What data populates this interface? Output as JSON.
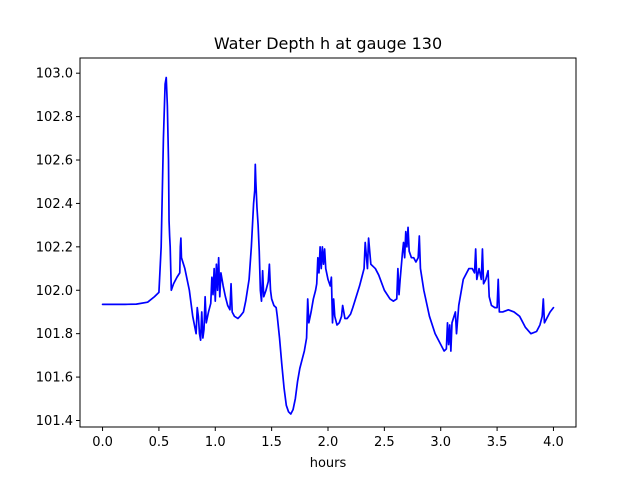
{
  "chart_data": {
    "type": "line",
    "title": "Water Depth h at gauge 130",
    "xlabel": "hours",
    "ylabel": "",
    "xlim": [
      -0.2,
      4.2
    ],
    "ylim": [
      101.37,
      103.07
    ],
    "xticks": [
      0.0,
      0.5,
      1.0,
      1.5,
      2.0,
      2.5,
      3.0,
      3.5,
      4.0
    ],
    "xtick_labels": [
      "0.0",
      "0.5",
      "1.0",
      "1.5",
      "2.0",
      "2.5",
      "3.0",
      "3.5",
      "4.0"
    ],
    "yticks": [
      101.4,
      101.6,
      101.8,
      102.0,
      102.2,
      102.4,
      102.6,
      102.8,
      103.0
    ],
    "ytick_labels": [
      "101.4",
      "101.6",
      "101.8",
      "102.0",
      "102.2",
      "102.4",
      "102.6",
      "102.8",
      "103.0"
    ],
    "grid": false,
    "legend": "none",
    "series": [
      {
        "color": "#0000ff",
        "points": [
          [
            0.0,
            101.935
          ],
          [
            0.2,
            101.935
          ],
          [
            0.3,
            101.936
          ],
          [
            0.4,
            101.945
          ],
          [
            0.46,
            101.97
          ],
          [
            0.5,
            101.99
          ],
          [
            0.52,
            102.2
          ],
          [
            0.54,
            102.7
          ],
          [
            0.555,
            102.95
          ],
          [
            0.565,
            102.98
          ],
          [
            0.575,
            102.85
          ],
          [
            0.585,
            102.6
          ],
          [
            0.59,
            102.32
          ],
          [
            0.595,
            102.25
          ],
          [
            0.6,
            102.2
          ],
          [
            0.61,
            102.0
          ],
          [
            0.63,
            102.03
          ],
          [
            0.66,
            102.06
          ],
          [
            0.685,
            102.08
          ],
          [
            0.69,
            102.2
          ],
          [
            0.695,
            102.24
          ],
          [
            0.7,
            102.15
          ],
          [
            0.73,
            102.1
          ],
          [
            0.77,
            102.0
          ],
          [
            0.8,
            101.88
          ],
          [
            0.83,
            101.8
          ],
          [
            0.84,
            101.92
          ],
          [
            0.85,
            101.88
          ],
          [
            0.86,
            101.8
          ],
          [
            0.87,
            101.77
          ],
          [
            0.88,
            101.9
          ],
          [
            0.89,
            101.78
          ],
          [
            0.9,
            101.82
          ],
          [
            0.91,
            101.97
          ],
          [
            0.92,
            101.85
          ],
          [
            0.94,
            101.9
          ],
          [
            0.96,
            101.94
          ],
          [
            0.97,
            102.06
          ],
          [
            0.98,
            101.98
          ],
          [
            0.99,
            102.1
          ],
          [
            1.0,
            101.95
          ],
          [
            1.01,
            102.12
          ],
          [
            1.02,
            102.0
          ],
          [
            1.03,
            102.15
          ],
          [
            1.04,
            101.97
          ],
          [
            1.05,
            102.08
          ],
          [
            1.07,
            102.02
          ],
          [
            1.09,
            101.97
          ],
          [
            1.11,
            101.93
          ],
          [
            1.13,
            101.91
          ],
          [
            1.14,
            102.03
          ],
          [
            1.15,
            101.9
          ],
          [
            1.17,
            101.88
          ],
          [
            1.2,
            101.87
          ],
          [
            1.22,
            101.88
          ],
          [
            1.25,
            101.9
          ],
          [
            1.27,
            101.95
          ],
          [
            1.3,
            102.05
          ],
          [
            1.32,
            102.2
          ],
          [
            1.34,
            102.4
          ],
          [
            1.35,
            102.46
          ],
          [
            1.355,
            102.58
          ],
          [
            1.36,
            102.5
          ],
          [
            1.37,
            102.38
          ],
          [
            1.38,
            102.3
          ],
          [
            1.39,
            102.18
          ],
          [
            1.4,
            102.0
          ],
          [
            1.41,
            101.95
          ],
          [
            1.42,
            102.09
          ],
          [
            1.43,
            101.97
          ],
          [
            1.45,
            102.0
          ],
          [
            1.47,
            102.04
          ],
          [
            1.48,
            102.12
          ],
          [
            1.49,
            102.0
          ],
          [
            1.5,
            101.96
          ],
          [
            1.52,
            101.93
          ],
          [
            1.54,
            101.92
          ],
          [
            1.55,
            101.88
          ],
          [
            1.57,
            101.78
          ],
          [
            1.59,
            101.66
          ],
          [
            1.61,
            101.55
          ],
          [
            1.63,
            101.47
          ],
          [
            1.65,
            101.44
          ],
          [
            1.67,
            101.43
          ],
          [
            1.69,
            101.45
          ],
          [
            1.71,
            101.5
          ],
          [
            1.73,
            101.58
          ],
          [
            1.75,
            101.64
          ],
          [
            1.77,
            101.68
          ],
          [
            1.79,
            101.72
          ],
          [
            1.81,
            101.78
          ],
          [
            1.82,
            101.96
          ],
          [
            1.83,
            101.85
          ],
          [
            1.85,
            101.9
          ],
          [
            1.87,
            101.96
          ],
          [
            1.89,
            102.0
          ],
          [
            1.9,
            102.03
          ],
          [
            1.91,
            102.15
          ],
          [
            1.92,
            102.08
          ],
          [
            1.93,
            102.2
          ],
          [
            1.94,
            102.1
          ],
          [
            1.95,
            102.2
          ],
          [
            1.96,
            102.12
          ],
          [
            1.97,
            102.19
          ],
          [
            1.98,
            102.1
          ],
          [
            2.0,
            102.05
          ],
          [
            2.02,
            102.02
          ],
          [
            2.03,
            102.06
          ],
          [
            2.04,
            101.85
          ],
          [
            2.05,
            101.96
          ],
          [
            2.06,
            101.88
          ],
          [
            2.08,
            101.84
          ],
          [
            2.1,
            101.85
          ],
          [
            2.12,
            101.88
          ],
          [
            2.13,
            101.93
          ],
          [
            2.15,
            101.87
          ],
          [
            2.17,
            101.87
          ],
          [
            2.2,
            101.89
          ],
          [
            2.22,
            101.92
          ],
          [
            2.25,
            101.97
          ],
          [
            2.28,
            102.02
          ],
          [
            2.3,
            102.06
          ],
          [
            2.32,
            102.1
          ],
          [
            2.33,
            102.22
          ],
          [
            2.35,
            102.1
          ],
          [
            2.36,
            102.24
          ],
          [
            2.38,
            102.12
          ],
          [
            2.42,
            102.1
          ],
          [
            2.45,
            102.07
          ],
          [
            2.5,
            102.0
          ],
          [
            2.55,
            101.96
          ],
          [
            2.58,
            101.95
          ],
          [
            2.61,
            101.96
          ],
          [
            2.62,
            102.1
          ],
          [
            2.63,
            101.98
          ],
          [
            2.64,
            102.05
          ],
          [
            2.66,
            102.17
          ],
          [
            2.67,
            102.22
          ],
          [
            2.68,
            102.15
          ],
          [
            2.69,
            102.27
          ],
          [
            2.7,
            102.2
          ],
          [
            2.71,
            102.29
          ],
          [
            2.72,
            102.18
          ],
          [
            2.74,
            102.15
          ],
          [
            2.76,
            102.15
          ],
          [
            2.78,
            102.13
          ],
          [
            2.8,
            102.15
          ],
          [
            2.81,
            102.25
          ],
          [
            2.82,
            102.1
          ],
          [
            2.85,
            102.0
          ],
          [
            2.9,
            101.88
          ],
          [
            2.95,
            101.8
          ],
          [
            3.0,
            101.75
          ],
          [
            3.03,
            101.72
          ],
          [
            3.05,
            101.73
          ],
          [
            3.06,
            101.85
          ],
          [
            3.07,
            101.75
          ],
          [
            3.08,
            101.84
          ],
          [
            3.09,
            101.72
          ],
          [
            3.1,
            101.85
          ],
          [
            3.13,
            101.9
          ],
          [
            3.14,
            101.8
          ],
          [
            3.16,
            101.93
          ],
          [
            3.2,
            102.05
          ],
          [
            3.25,
            102.1
          ],
          [
            3.28,
            102.1
          ],
          [
            3.3,
            102.08
          ],
          [
            3.31,
            102.19
          ],
          [
            3.32,
            102.05
          ],
          [
            3.34,
            102.1
          ],
          [
            3.36,
            102.05
          ],
          [
            3.37,
            102.19
          ],
          [
            3.38,
            102.03
          ],
          [
            3.4,
            102.05
          ],
          [
            3.42,
            102.09
          ],
          [
            3.43,
            101.97
          ],
          [
            3.45,
            101.93
          ],
          [
            3.48,
            101.92
          ],
          [
            3.5,
            101.92
          ],
          [
            3.51,
            102.05
          ],
          [
            3.52,
            101.9
          ],
          [
            3.55,
            101.9
          ],
          [
            3.6,
            101.91
          ],
          [
            3.65,
            101.9
          ],
          [
            3.7,
            101.88
          ],
          [
            3.75,
            101.83
          ],
          [
            3.8,
            101.8
          ],
          [
            3.85,
            101.81
          ],
          [
            3.88,
            101.84
          ],
          [
            3.9,
            101.88
          ],
          [
            3.91,
            101.96
          ],
          [
            3.92,
            101.85
          ],
          [
            3.94,
            101.87
          ],
          [
            3.97,
            101.9
          ],
          [
            4.0,
            101.92
          ]
        ]
      }
    ]
  }
}
